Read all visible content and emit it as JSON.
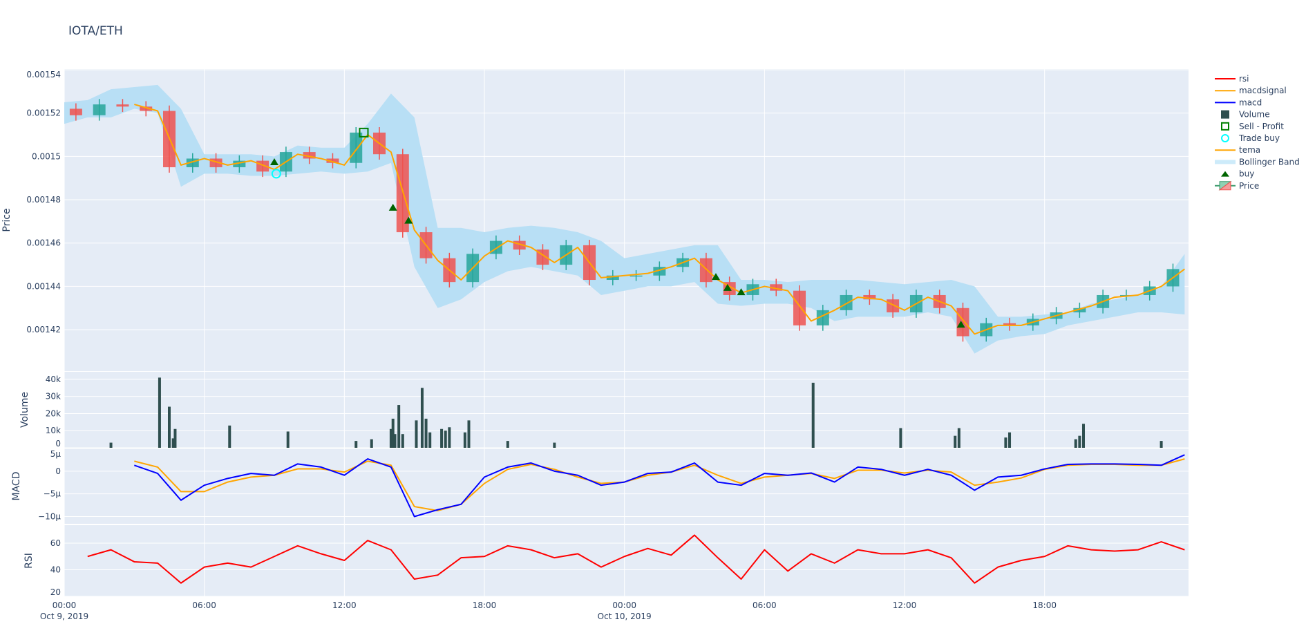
{
  "chart_data": {
    "type": "candlestick",
    "title": "IOTA/ETH",
    "x_ticks": [
      {
        "t": "2019-10-09 00:00",
        "label": "00:00",
        "date": "Oct 9, 2019"
      },
      {
        "t": "2019-10-09 06:00",
        "label": "06:00",
        "date": ""
      },
      {
        "t": "2019-10-09 12:00",
        "label": "12:00",
        "date": ""
      },
      {
        "t": "2019-10-09 18:00",
        "label": "18:00",
        "date": ""
      },
      {
        "t": "2019-10-10 00:00",
        "label": "00:00",
        "date": "Oct 10, 2019"
      },
      {
        "t": "2019-10-10 06:00",
        "label": "06:00",
        "date": ""
      },
      {
        "t": "2019-10-10 12:00",
        "label": "12:00",
        "date": ""
      },
      {
        "t": "2019-10-10 18:00",
        "label": "18:00",
        "date": ""
      }
    ],
    "xlim": [
      "2019-10-09 00:00",
      "2019-10-11 00:10"
    ],
    "panels": {
      "price": {
        "ylabel": "Price",
        "ylim": [
          0.0014009,
          0.0015403
        ],
        "ticks": [
          {
            "v": 0.00142,
            "label": "0.00142"
          },
          {
            "v": 0.00144,
            "label": "0.00144"
          },
          {
            "v": 0.00146,
            "label": "0.00146"
          },
          {
            "v": 0.00148,
            "label": "0.00148"
          },
          {
            "v": 0.0015,
            "label": "0.0015"
          },
          {
            "v": 0.00152,
            "label": "0.00152"
          },
          {
            "v": 0.00154,
            "label": "0.00154"
          }
        ]
      },
      "volume": {
        "ylabel": "Volume",
        "ylim": [
          0,
          44400
        ],
        "ticks": [
          {
            "v": 0,
            "label": "0"
          },
          {
            "v": 10000,
            "label": "10k"
          },
          {
            "v": 20000,
            "label": "20k"
          },
          {
            "v": 30000,
            "label": "30k"
          },
          {
            "v": 40000,
            "label": "40k"
          }
        ]
      },
      "macd": {
        "ylabel": "MACD",
        "ylim": [
          -1.16e-05,
          5e-06
        ],
        "ticks": [
          {
            "v": 5e-06,
            "label": "5µ"
          },
          {
            "v": 0,
            "label": "0"
          },
          {
            "v": -5e-06,
            "label": "−5µ"
          },
          {
            "v": -1e-05,
            "label": "−10µ"
          }
        ]
      },
      "rsi": {
        "ylabel": "RSI",
        "ylim": [
          20,
          73.5
        ],
        "ticks": [
          {
            "v": 20,
            "label": "20"
          },
          {
            "v": 40,
            "label": "40"
          },
          {
            "v": 60,
            "label": "60"
          }
        ]
      }
    },
    "time": [
      "2019-10-09 00:00",
      "2019-10-09 01:00",
      "2019-10-09 02:00",
      "2019-10-09 03:00",
      "2019-10-09 04:00",
      "2019-10-09 05:00",
      "2019-10-09 06:00",
      "2019-10-09 07:00",
      "2019-10-09 08:00",
      "2019-10-09 09:00",
      "2019-10-09 10:00",
      "2019-10-09 11:00",
      "2019-10-09 12:00",
      "2019-10-09 13:00",
      "2019-10-09 14:00",
      "2019-10-09 15:00",
      "2019-10-09 16:00",
      "2019-10-09 17:00",
      "2019-10-09 18:00",
      "2019-10-09 19:00",
      "2019-10-09 20:00",
      "2019-10-09 21:00",
      "2019-10-09 22:00",
      "2019-10-09 23:00",
      "2019-10-10 00:00",
      "2019-10-10 01:00",
      "2019-10-10 02:00",
      "2019-10-10 03:00",
      "2019-10-10 04:00",
      "2019-10-10 05:00",
      "2019-10-10 06:00",
      "2019-10-10 07:00",
      "2019-10-10 08:00",
      "2019-10-10 09:00",
      "2019-10-10 10:00",
      "2019-10-10 11:00",
      "2019-10-10 12:00",
      "2019-10-10 13:00",
      "2019-10-10 14:00",
      "2019-10-10 15:00",
      "2019-10-10 16:00",
      "2019-10-10 17:00",
      "2019-10-10 18:00",
      "2019-10-10 19:00",
      "2019-10-10 20:00",
      "2019-10-10 21:00",
      "2019-10-10 22:00",
      "2019-10-10 23:00",
      "2019-10-11 00:00"
    ],
    "close": [
      0.001522,
      0.001519,
      0.001524,
      0.001523,
      0.001521,
      0.001495,
      0.001499,
      0.001495,
      0.001498,
      0.001493,
      0.001502,
      0.001499,
      0.001497,
      0.001511,
      0.001501,
      0.001465,
      0.001453,
      0.001442,
      0.001455,
      0.001461,
      0.001457,
      0.00145,
      0.001459,
      0.001443,
      0.001445,
      0.001445,
      0.001449,
      0.001453,
      0.001442,
      0.001436,
      0.001441,
      0.001438,
      0.001422,
      0.001429,
      0.001436,
      0.001434,
      0.001428,
      0.001436,
      0.00143,
      0.001417,
      0.001423,
      0.001422,
      0.001425,
      0.001428,
      0.00143,
      0.001436,
      0.001436,
      0.00144,
      0.001448
    ],
    "tema": [
      null,
      null,
      null,
      0.001524,
      0.001521,
      0.001496,
      0.001499,
      0.001496,
      0.001498,
      0.001494,
      0.001501,
      0.001499,
      0.001496,
      0.00151,
      0.001502,
      0.001466,
      0.001452,
      0.001443,
      0.001454,
      0.001461,
      0.001458,
      0.001451,
      0.001458,
      0.001444,
      0.001445,
      0.001446,
      0.001449,
      0.001453,
      0.001443,
      0.001437,
      0.00144,
      0.001438,
      0.001424,
      0.001429,
      0.001435,
      0.001434,
      0.001429,
      0.001435,
      0.001431,
      0.001418,
      0.001422,
      0.001422,
      0.001425,
      0.001428,
      0.001431,
      0.001435,
      0.001436,
      0.00144,
      0.001448
    ],
    "bb_upper": [
      0.001525,
      0.001526,
      0.001531,
      0.001532,
      0.001533,
      0.001522,
      0.001501,
      0.001501,
      0.001501,
      0.0015,
      0.001505,
      0.001504,
      0.001504,
      0.001515,
      0.001529,
      0.001518,
      0.001467,
      0.001467,
      0.001465,
      0.001467,
      0.001468,
      0.001467,
      0.001465,
      0.001461,
      0.001453,
      0.001455,
      0.001457,
      0.001459,
      0.001459,
      0.001443,
      0.001443,
      0.001442,
      0.001443,
      0.001443,
      0.001443,
      0.001442,
      0.001441,
      0.001442,
      0.001443,
      0.00144,
      0.001426,
      0.001426,
      0.001427,
      0.001428,
      0.001432,
      0.001434,
      0.001436,
      0.00144,
      0.001455
    ],
    "bb_lower": [
      0.001515,
      0.001518,
      0.001518,
      0.001522,
      0.00152,
      0.001486,
      0.001492,
      0.001492,
      0.001491,
      0.001491,
      0.001492,
      0.001493,
      0.001492,
      0.001493,
      0.001497,
      0.001449,
      0.00143,
      0.001434,
      0.001442,
      0.001447,
      0.001449,
      0.001447,
      0.001445,
      0.001436,
      0.001438,
      0.00144,
      0.00144,
      0.001442,
      0.001432,
      0.001431,
      0.001432,
      0.001432,
      0.00143,
      0.001424,
      0.001426,
      0.001426,
      0.001426,
      0.001428,
      0.001426,
      0.001409,
      0.001415,
      0.001417,
      0.001418,
      0.001422,
      0.001424,
      0.001426,
      0.001428,
      0.001428,
      0.001427
    ],
    "macd": [
      null,
      null,
      null,
      1.3e-06,
      -5e-07,
      -6.4e-06,
      -3.1e-06,
      -1.6e-06,
      -5e-07,
      -9e-07,
      1.6e-06,
      9e-07,
      -9e-07,
      2.7e-06,
      9e-07,
      -1e-05,
      -8.5e-06,
      -7.3e-06,
      -1.3e-06,
      9e-07,
      1.8e-06,
      0,
      -9e-07,
      -3.1e-06,
      -2.4e-06,
      -5e-07,
      -2e-07,
      1.8e-06,
      -2.4e-06,
      -3.1e-06,
      -5e-07,
      -9e-07,
      -4e-07,
      -2.4e-06,
      9e-07,
      4e-07,
      -9e-07,
      4e-07,
      -9e-07,
      -4.2e-06,
      -1.3e-06,
      -9e-07,
      5e-07,
      1.5e-06,
      1.6e-06,
      1.6e-06,
      1.5e-06,
      1.3e-06,
      3.6e-06
    ],
    "macdsignal": [
      null,
      null,
      null,
      2.2e-06,
      9e-07,
      -4.5e-06,
      -4.5e-06,
      -2.4e-06,
      -1.3e-06,
      -9e-07,
      5e-07,
      5e-07,
      -2e-07,
      2.2e-06,
      1.3e-06,
      -7.8e-06,
      -8.7e-06,
      -7.3e-06,
      -2.7e-06,
      4e-07,
      1.5e-06,
      4e-07,
      -1.3e-06,
      -2.7e-06,
      -2.4e-06,
      -9e-07,
      -2e-07,
      1.3e-06,
      -9e-07,
      -2.7e-06,
      -1.3e-06,
      -9e-07,
      -5e-07,
      -1.6e-06,
      2e-07,
      2e-07,
      -4e-07,
      2e-07,
      -2e-07,
      -3.1e-06,
      -2.4e-06,
      -1.5e-06,
      4e-07,
      1.3e-06,
      1.5e-06,
      1.5e-06,
      1.3e-06,
      1.3e-06,
      2.7e-06
    ],
    "rsi": [
      null,
      50,
      55,
      46,
      45,
      30,
      42,
      45,
      42,
      50,
      58,
      52,
      47,
      62,
      55,
      33,
      36,
      49,
      50,
      58,
      55,
      49,
      52,
      42,
      50,
      56,
      51,
      66,
      49,
      33,
      55,
      39,
      52,
      45,
      55,
      52,
      52,
      55,
      49,
      30,
      42,
      47,
      50,
      58,
      55,
      54,
      55,
      61,
      55
    ],
    "volume": [
      {
        "t": "2019-10-09 02:00",
        "v": 3000
      },
      {
        "t": "2019-10-09 04:05",
        "v": 41000
      },
      {
        "t": "2019-10-09 04:30",
        "v": 24000
      },
      {
        "t": "2019-10-09 04:40",
        "v": 5500
      },
      {
        "t": "2019-10-09 04:45",
        "v": 11000
      },
      {
        "t": "2019-10-09 07:05",
        "v": 13000
      },
      {
        "t": "2019-10-09 09:35",
        "v": 9500
      },
      {
        "t": "2019-10-09 12:30",
        "v": 4000
      },
      {
        "t": "2019-10-09 13:10",
        "v": 5000
      },
      {
        "t": "2019-10-09 14:00",
        "v": 11000
      },
      {
        "t": "2019-10-09 14:05",
        "v": 17000
      },
      {
        "t": "2019-10-09 14:10",
        "v": 8000
      },
      {
        "t": "2019-10-09 14:20",
        "v": 25000
      },
      {
        "t": "2019-10-09 14:30",
        "v": 8000
      },
      {
        "t": "2019-10-09 15:05",
        "v": 16000
      },
      {
        "t": "2019-10-09 15:20",
        "v": 35000
      },
      {
        "t": "2019-10-09 15:30",
        "v": 17000
      },
      {
        "t": "2019-10-09 15:40",
        "v": 9000
      },
      {
        "t": "2019-10-09 16:10",
        "v": 11000
      },
      {
        "t": "2019-10-09 16:20",
        "v": 10000
      },
      {
        "t": "2019-10-09 16:30",
        "v": 12000
      },
      {
        "t": "2019-10-09 17:10",
        "v": 9000
      },
      {
        "t": "2019-10-09 17:20",
        "v": 16000
      },
      {
        "t": "2019-10-09 19:00",
        "v": 4000
      },
      {
        "t": "2019-10-09 21:00",
        "v": 3000
      },
      {
        "t": "2019-10-10 08:05",
        "v": 38000
      },
      {
        "t": "2019-10-10 11:50",
        "v": 11500
      },
      {
        "t": "2019-10-10 14:10",
        "v": 7000
      },
      {
        "t": "2019-10-10 14:20",
        "v": 11500
      },
      {
        "t": "2019-10-10 16:20",
        "v": 6000
      },
      {
        "t": "2019-10-10 16:30",
        "v": 9000
      },
      {
        "t": "2019-10-10 19:20",
        "v": 5000
      },
      {
        "t": "2019-10-10 19:30",
        "v": 7000
      },
      {
        "t": "2019-10-10 19:40",
        "v": 14000
      },
      {
        "t": "2019-10-10 23:00",
        "v": 4000
      }
    ],
    "buy_signals": [
      {
        "t": "2019-10-09 09:00",
        "price": 0.001495
      },
      {
        "t": "2019-10-09 14:05",
        "price": 0.001474
      },
      {
        "t": "2019-10-09 14:45",
        "price": 0.001468
      },
      {
        "t": "2019-10-10 03:55",
        "price": 0.001442
      },
      {
        "t": "2019-10-10 04:25",
        "price": 0.001437
      },
      {
        "t": "2019-10-10 05:00",
        "price": 0.001435
      },
      {
        "t": "2019-10-10 14:25",
        "price": 0.00142
      }
    ],
    "trade_buy": [
      {
        "t": "2019-10-09 09:05",
        "price": 0.001492
      }
    ],
    "sell_profit": [
      {
        "t": "2019-10-09 12:50",
        "price": 0.001511
      }
    ],
    "legend": {
      "position": "top-right",
      "items": [
        {
          "name": "rsi",
          "kind": "line",
          "color": "#ff0000"
        },
        {
          "name": "macdsignal",
          "kind": "line",
          "color": "#ffa500"
        },
        {
          "name": "macd",
          "kind": "line",
          "color": "#0000ff"
        },
        {
          "name": "Volume",
          "kind": "square",
          "color": "#2f4f4f"
        },
        {
          "name": "Sell - Profit",
          "kind": "square-open",
          "color": "#008000"
        },
        {
          "name": "Trade buy",
          "kind": "circle-open",
          "color": "#00ffff"
        },
        {
          "name": "tema",
          "kind": "line",
          "color": "#ffa500"
        },
        {
          "name": "Bollinger Band",
          "kind": "band",
          "color": "#b8dff5"
        },
        {
          "name": "buy",
          "kind": "triangle",
          "color": "#006400"
        },
        {
          "name": "Price",
          "kind": "candle",
          "color": "#26a69a"
        }
      ]
    },
    "colors": {
      "increasing": "#26a69a",
      "decreasing": "#ef5350",
      "band": "#b8dff5",
      "bg": "#e5ecf6",
      "grid": "#ffffff"
    }
  }
}
